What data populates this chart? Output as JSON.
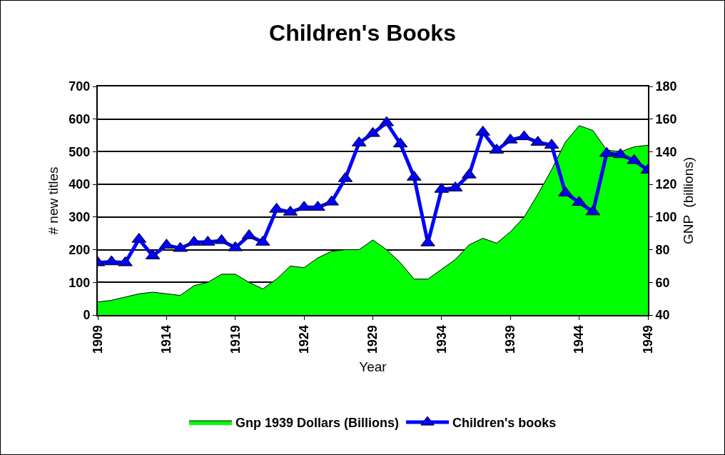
{
  "chart_data": {
    "type": "line",
    "title": "Children's Books",
    "xlabel": "Year",
    "ylabel": "# new titles",
    "y2label": "GNP  (billions)",
    "x": [
      1909,
      1910,
      1911,
      1912,
      1913,
      1914,
      1915,
      1916,
      1917,
      1918,
      1919,
      1920,
      1921,
      1922,
      1923,
      1924,
      1925,
      1926,
      1927,
      1928,
      1929,
      1930,
      1931,
      1932,
      1933,
      1934,
      1935,
      1936,
      1937,
      1938,
      1939,
      1940,
      1941,
      1942,
      1943,
      1944,
      1945,
      1946,
      1947,
      1948,
      1949
    ],
    "series": [
      {
        "name": "Gnp 1939 Dollars (Billions)",
        "type": "area",
        "axis": "y2",
        "color": "#00ff00",
        "values": [
          48,
          49,
          51,
          53,
          54,
          53,
          52,
          58,
          60,
          65,
          65,
          60,
          56,
          62,
          70,
          69,
          75,
          79,
          80,
          80,
          86,
          80,
          72,
          62,
          62,
          68,
          74,
          83,
          87,
          84,
          91,
          100,
          114,
          129,
          146,
          156,
          153,
          141,
          140,
          143,
          144
        ]
      },
      {
        "name": "Children's books",
        "color": "#0000ff",
        "marker": "triangle",
        "values": [
          160,
          163,
          160,
          232,
          181,
          214,
          204,
          223,
          223,
          228,
          206,
          243,
          223,
          324,
          315,
          330,
          330,
          346,
          418,
          527,
          556,
          589,
          524,
          422,
          221,
          385,
          389,
          429,
          560,
          505,
          536,
          546,
          529,
          520,
          374,
          345,
          316,
          495,
          491,
          473,
          444
        ]
      }
    ],
    "xlim": [
      1909,
      1949
    ],
    "xticks": [
      1909,
      1914,
      1919,
      1924,
      1929,
      1934,
      1939,
      1944,
      1949
    ],
    "ylim": [
      0,
      700
    ],
    "yticks": [
      0,
      100,
      200,
      300,
      400,
      500,
      600,
      700
    ],
    "y2lim": [
      40,
      180
    ],
    "y2ticks": [
      40,
      60,
      80,
      100,
      120,
      140,
      160,
      180
    ],
    "grid": "y",
    "legend": "bottom"
  }
}
